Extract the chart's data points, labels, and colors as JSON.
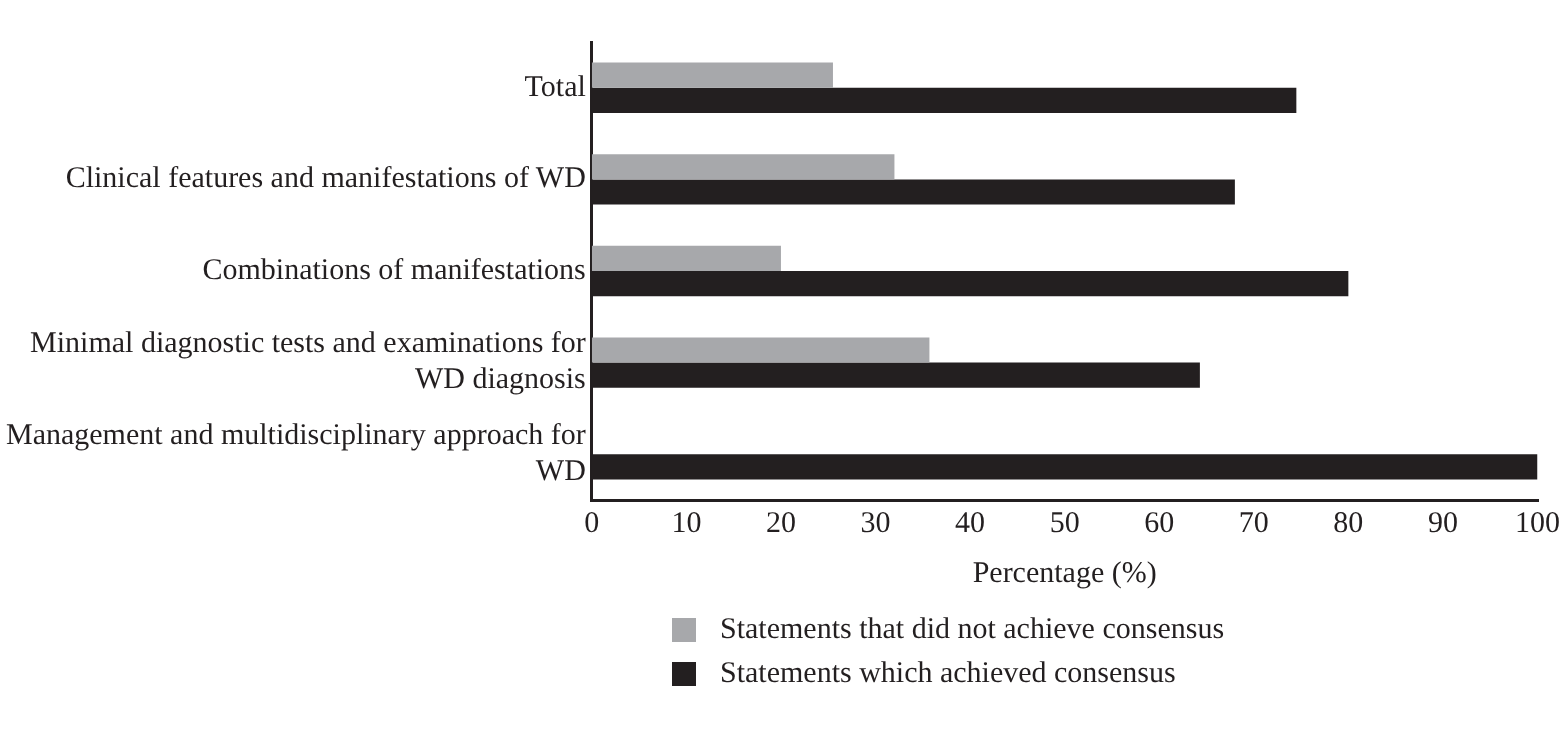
{
  "chart_data": {
    "type": "bar",
    "orientation": "horizontal",
    "xlabel": "Percentage (%)",
    "categories": [
      "Total",
      "Clinical features and manifestations of WD",
      "Combinations of manifestations",
      "Minimal diagnostic tests and examinations for WD diagnosis",
      "Management and multidisciplinary approach for WD"
    ],
    "series": [
      {
        "name": "Statements that did not achieve consensus",
        "color": "#a7a8ab",
        "values": [
          25.5,
          32,
          20,
          35.7,
          0
        ]
      },
      {
        "name": "Statements which achieved consensus",
        "color": "#231f20",
        "values": [
          74.5,
          68,
          80,
          64.3,
          100
        ]
      }
    ],
    "xlim": [
      0,
      100
    ],
    "xticks": [
      0,
      10,
      20,
      30,
      40,
      50,
      60,
      70,
      80,
      90,
      100
    ],
    "grid": false,
    "legend": "bottom left"
  }
}
